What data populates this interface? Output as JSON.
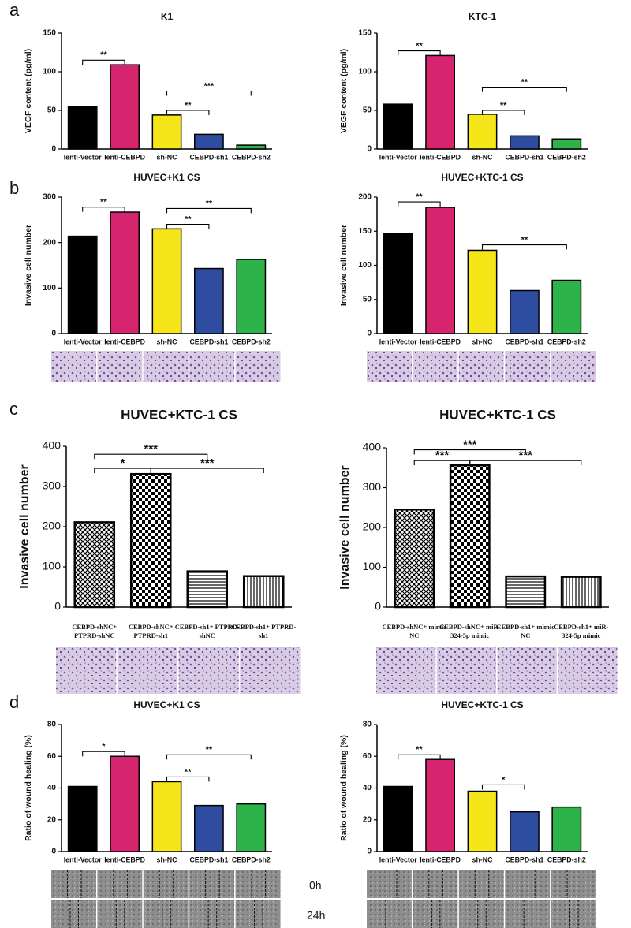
{
  "panel_labels": [
    "a",
    "b",
    "c",
    "d"
  ],
  "wound_labels": [
    "0h",
    "24h"
  ],
  "chart_data": [
    {
      "type": "bar",
      "title": "K1",
      "ylabel": "VEGF content (pg/ml)",
      "categories": [
        "lenti-Vector",
        "lenti-CEBPD",
        "sh-NC",
        "CEBPD-sh1",
        "CEBPD-sh2"
      ],
      "values": [
        55,
        109,
        44,
        19,
        5
      ],
      "colors": [
        "#000000",
        "#d6246e",
        "#f5e61a",
        "#2e4da0",
        "#2db34a"
      ],
      "ylim": [
        0,
        150
      ],
      "yticks": [
        0,
        50,
        100,
        150
      ],
      "annotations": [
        "**",
        "***",
        "**"
      ]
    },
    {
      "type": "bar",
      "title": "KTC-1",
      "ylabel": "VEGF content (pg/ml)",
      "categories": [
        "lenti-Vector",
        "lenti-CEBPD",
        "sh-NC",
        "CEBPD-sh1",
        "CEBPD-sh2"
      ],
      "values": [
        58,
        121,
        45,
        17,
        13
      ],
      "colors": [
        "#000000",
        "#d6246e",
        "#f5e61a",
        "#2e4da0",
        "#2db34a"
      ],
      "ylim": [
        0,
        150
      ],
      "yticks": [
        0,
        50,
        100,
        150
      ],
      "annotations": [
        "**",
        "**",
        "**"
      ]
    },
    {
      "type": "bar",
      "title": "HUVEC+K1 CS",
      "ylabel": "Invasive cell number",
      "categories": [
        "lenti-Vector",
        "lenti-CEBPD",
        "sh-NC",
        "CEBPD-sh1",
        "CEBPD-sh2"
      ],
      "values": [
        214,
        267,
        230,
        143,
        163
      ],
      "colors": [
        "#000000",
        "#d6246e",
        "#f5e61a",
        "#2e4da0",
        "#2db34a"
      ],
      "ylim": [
        0,
        300
      ],
      "yticks": [
        0,
        100,
        200,
        300
      ],
      "annotations": [
        "**",
        "**",
        "**"
      ]
    },
    {
      "type": "bar",
      "title": "HUVEC+KTC-1 CS",
      "ylabel": "Invasive cell number",
      "categories": [
        "lenti-Vector",
        "lenti-CEBPD",
        "sh-NC",
        "CEBPD-sh1",
        "CEBPD-sh2"
      ],
      "values": [
        147,
        185,
        122,
        63,
        78
      ],
      "colors": [
        "#000000",
        "#d6246e",
        "#f5e61a",
        "#2e4da0",
        "#2db34a"
      ],
      "ylim": [
        0,
        200
      ],
      "yticks": [
        0,
        50,
        100,
        150,
        200
      ],
      "annotations": [
        "**",
        "**"
      ]
    },
    {
      "type": "bar",
      "title": "HUVEC+KTC-1 CS",
      "ylabel": "Invasive cell number",
      "categories": [
        "CEBPD-shNC+ PTPRD-shNC",
        "CEBPD-shNC+ PTPRD-sh1",
        "CEBPD-sh1+ PTPRD-shNC",
        "CEBPD-sh1+ PTPRD-sh1"
      ],
      "values": [
        211,
        331,
        89,
        77
      ],
      "patterns": [
        "crosshatch",
        "checker",
        "horizontal",
        "vertical"
      ],
      "ylim": [
        0,
        400
      ],
      "yticks": [
        0,
        100,
        200,
        300,
        400
      ],
      "annotations": [
        "***",
        "*",
        "***"
      ]
    },
    {
      "type": "bar",
      "title": "HUVEC+KTC-1 CS",
      "ylabel": "Invasive cell number",
      "categories": [
        "CEBPD-shNC+ mimic NC",
        "CEBPD-shNC+ miR-324-5p mimic",
        "CEBPD-sh1+ mimic NC",
        "CEBPD-sh1+ miR-324-5p mimic"
      ],
      "values": [
        245,
        356,
        77,
        76
      ],
      "patterns": [
        "crosshatch",
        "checker",
        "horizontal",
        "vertical"
      ],
      "ylim": [
        0,
        400
      ],
      "yticks": [
        0,
        100,
        200,
        300,
        400
      ],
      "annotations": [
        "***",
        "***",
        "***"
      ]
    },
    {
      "type": "bar",
      "title": "HUVEC+K1 CS",
      "ylabel": "Ratio of wound healing (%)",
      "categories": [
        "lenti-Vector",
        "lenti-CEBPD",
        "sh-NC",
        "CEBPD-sh1",
        "CEBPD-sh2"
      ],
      "values": [
        41,
        60,
        44,
        29,
        30
      ],
      "colors": [
        "#000000",
        "#d6246e",
        "#f5e61a",
        "#2e4da0",
        "#2db34a"
      ],
      "ylim": [
        0,
        80
      ],
      "yticks": [
        0,
        20,
        40,
        60,
        80
      ],
      "annotations": [
        "*",
        "**",
        "**"
      ]
    },
    {
      "type": "bar",
      "title": "HUVEC+KTC-1 CS",
      "ylabel": "Ratio of wound healing (%)",
      "categories": [
        "lenti-Vector",
        "lenti-CEBPD",
        "sh-NC",
        "CEBPD-sh1",
        "CEBPD-sh2"
      ],
      "values": [
        41,
        58,
        38,
        25,
        28
      ],
      "colors": [
        "#000000",
        "#d6246e",
        "#f5e61a",
        "#2e4da0",
        "#2db34a"
      ],
      "ylim": [
        0,
        80
      ],
      "yticks": [
        0,
        20,
        40,
        60,
        80
      ],
      "annotations": [
        "**",
        "*"
      ]
    }
  ]
}
